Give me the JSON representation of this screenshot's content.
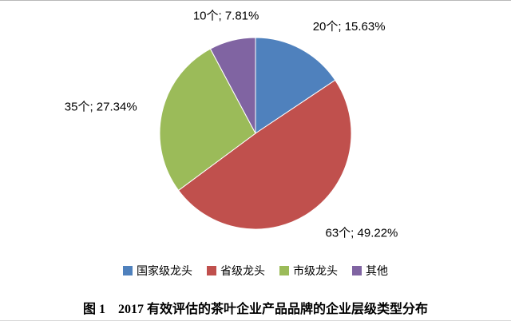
{
  "chart_data": {
    "type": "pie",
    "title": "",
    "categories": [
      "国家级龙头",
      "省级龙头",
      "市级龙头",
      "其他"
    ],
    "values": [
      20,
      63,
      35,
      10
    ],
    "unit": "个",
    "percentages": [
      15.63,
      49.22,
      27.34,
      7.81
    ],
    "data_labels": [
      "20个; 15.63%",
      "63个; 49.22%",
      "35个; 27.34%",
      "10个; 7.81%"
    ],
    "colors": [
      "#4F81BD",
      "#C0504D",
      "#9BBB59",
      "#8064A2"
    ],
    "start_angle_deg": 0,
    "direction": "clockwise",
    "legend_position": "bottom",
    "legend_entries": [
      "国家级龙头",
      "省级龙头",
      "市级龙头",
      "其他"
    ]
  },
  "caption": "图 1　2017 有效评估的茶叶企业产品品牌的企业层级类型分布"
}
